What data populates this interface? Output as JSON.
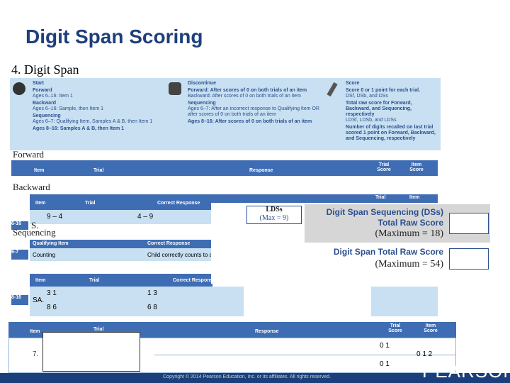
{
  "header": {
    "title": "Digit Span Scoring",
    "subtitle": "4. Digit Span"
  },
  "instructions": {
    "start": {
      "heading": "Start",
      "lines": [
        "Forward",
        "Ages 6–16: Item 1",
        "Backward",
        "Ages 6–16: Sample, then Item 1",
        "Sequencing",
        "Ages 6–7: Qualifying Item, Samples A & B, then Item 1",
        "Ages 8–16: Samples A & B, then Item 1"
      ]
    },
    "discontinue": {
      "heading": "Discontinue",
      "lines": [
        "Forward: After scores of 0 on both trials of an item",
        "Backward: After scores of 0 on both trials of an item",
        "Sequencing",
        "Ages 6–7: After an incorrect response to Qualifying Item OR after scores of 0 on both trials of an item",
        "Ages 8–16: After scores of 0 on both trials of an item"
      ]
    },
    "score": {
      "heading": "Score",
      "lines": [
        "Score 0 or 1 point for each trial.",
        "DSf, DSb, and DSs",
        "Total raw score for Forward, Backward, and Sequencing, respectively",
        "LDSf, LDSb, and LDSs",
        "Number of digits recalled on last trial scored 1 point on Forward, Backward, and Sequencing, respectively"
      ]
    }
  },
  "forward": {
    "label": "Forward",
    "headers": [
      "Item",
      "Trial",
      "Response",
      "Trial Score",
      "Item Score"
    ]
  },
  "backward": {
    "label": "Backward",
    "headers": [
      "Item",
      "Trial",
      "Correct Response",
      "Trial",
      "Item"
    ],
    "row": {
      "item": "6-16",
      "trial_item": "S.",
      "trial": "9 – 4",
      "response": "4 – 9"
    }
  },
  "sequencing": {
    "label": "Sequencing",
    "qualifying_headers": [
      "Qualifying Item",
      "Correct Response"
    ],
    "qualifying_row": [
      "6-7",
      "Counting",
      "Child correctly counts to a"
    ],
    "headers": [
      "Item",
      "Trial",
      "Correct Response"
    ],
    "item": "8-16",
    "sample": "SA.",
    "trials": [
      "3 1",
      "8 6"
    ],
    "responses": [
      "1 3",
      "6 8"
    ]
  },
  "overlay": {
    "ldss": "LDSs",
    "ldss_max": "(Max = 9)",
    "dss_title": "Digit Span Sequencing (DSs)",
    "dss_sub": "Total Raw Score",
    "dss_max": "(Maximum = 18)",
    "total_title": "Digit Span Total Raw Score",
    "total_max": "(Maximum = 54)"
  },
  "bottom_table": {
    "headers": [
      "Item",
      "Trial",
      "Response",
      "Trial Score",
      "Item Score"
    ],
    "item": "7.",
    "trial_scores": [
      "0 1",
      "0 1"
    ],
    "item_score": "0 1 2"
  },
  "footer": {
    "copyright": "Copyright © 2014 Pearson Education, Inc. or its affiliates. All rights reserved.",
    "logo": "PEARSON"
  }
}
